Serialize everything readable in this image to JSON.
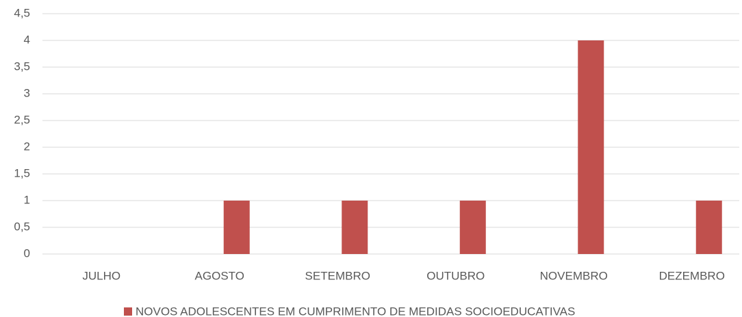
{
  "chart_data": {
    "type": "bar",
    "categories": [
      "JULHO",
      "AGOSTO",
      "SETEMBRO",
      "OUTUBRO",
      "NOVEMBRO",
      "DEZEMBRO"
    ],
    "series": [
      {
        "name": "NOVOS ADOLESCENTES EM CUMPRIMENTO DE MEDIDAS SOCIOEDUCATIVAS",
        "color": "#c0504d",
        "values": [
          0,
          1,
          1,
          1,
          4,
          1
        ]
      }
    ],
    "ylim": [
      0,
      4.5
    ],
    "yticks": [
      0,
      {
        "value": 0.5,
        "label": "0,5"
      },
      1,
      {
        "value": 1.5,
        "label": "1,5"
      },
      2,
      {
        "value": 2.5,
        "label": "2,5"
      },
      3,
      {
        "value": 3.5,
        "label": "3,5"
      },
      4,
      {
        "value": 4.5,
        "label": "4,5"
      }
    ],
    "grid": true,
    "legend": "bottom"
  }
}
